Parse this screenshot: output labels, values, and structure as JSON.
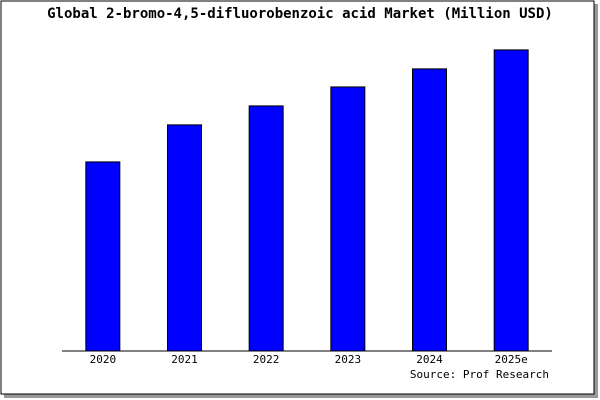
{
  "chart_data": {
    "type": "bar",
    "title": "Global 2-bromo-4,5-difluorobenzoic acid Market (Million USD)",
    "categories": [
      "2020",
      "2021",
      "2022",
      "2023",
      "2024",
      "2025e"
    ],
    "values": [
      61.8,
      73.9,
      80.1,
      86.3,
      92.2,
      98.4
    ],
    "color": "#0000ff",
    "ylim": [
      0,
      100
    ],
    "source": "Source: Prof Research"
  }
}
